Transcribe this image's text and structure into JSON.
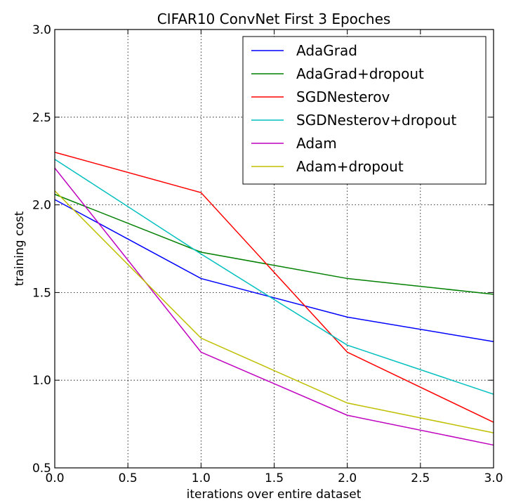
{
  "chart_data": {
    "type": "line",
    "title": "CIFAR10 ConvNet First 3 Epoches",
    "xlabel": "iterations over entire dataset",
    "ylabel": "training cost",
    "xlim": [
      0.0,
      3.0
    ],
    "ylim": [
      0.5,
      3.0
    ],
    "xticks": [
      0.0,
      0.5,
      1.0,
      1.5,
      2.0,
      2.5,
      3.0
    ],
    "xtick_labels": [
      "0.0",
      "0.5",
      "1.0",
      "1.5",
      "2.0",
      "2.5",
      "3.0"
    ],
    "yticks": [
      0.5,
      1.0,
      1.5,
      2.0,
      2.5,
      3.0
    ],
    "ytick_labels": [
      "0.5",
      "1.0",
      "1.5",
      "2.0",
      "2.5",
      "3.0"
    ],
    "grid": true,
    "legend_position": "top-right",
    "x": [
      0,
      1,
      2,
      3
    ],
    "series": [
      {
        "name": "AdaGrad",
        "color": "#0000ff",
        "values": [
          2.03,
          1.58,
          1.36,
          1.22
        ]
      },
      {
        "name": "AdaGrad+dropout",
        "color": "#008000",
        "values": [
          2.06,
          1.73,
          1.58,
          1.49
        ]
      },
      {
        "name": "SGDNesterov",
        "color": "#ff0000",
        "values": [
          2.3,
          2.07,
          1.16,
          0.76
        ]
      },
      {
        "name": "SGDNesterov+dropout",
        "color": "#00bfbf",
        "values": [
          2.26,
          1.72,
          1.2,
          0.92
        ]
      },
      {
        "name": "Adam",
        "color": "#bf00bf",
        "values": [
          2.21,
          1.16,
          0.8,
          0.63
        ]
      },
      {
        "name": "Adam+dropout",
        "color": "#bfbf00",
        "values": [
          2.08,
          1.24,
          0.87,
          0.7
        ]
      }
    ]
  }
}
